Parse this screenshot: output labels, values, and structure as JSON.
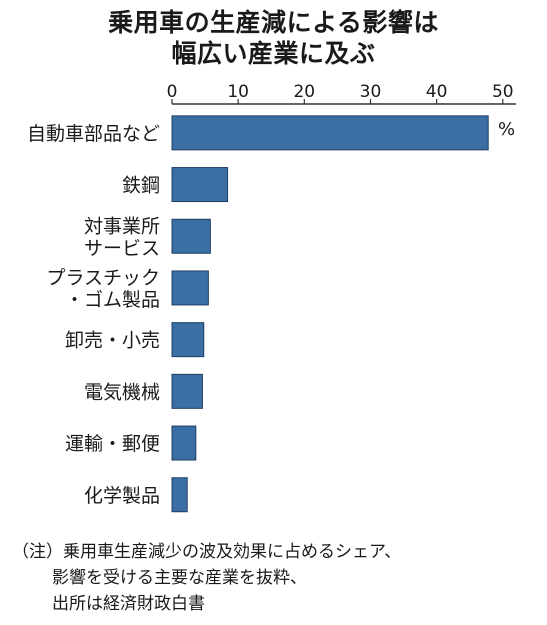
{
  "title_lines": [
    "乗用車の生産減による影響は",
    "幅広い産業に及ぶ"
  ],
  "notes": [
    "（注）乗用車生産減少の波及効果に占めるシェア、",
    "影響を受ける主要な産業を抜粋、",
    "出所は経済財政白書"
  ],
  "chart_data": {
    "type": "bar",
    "orientation": "horizontal",
    "title": "乗用車の生産減による影響は幅広い産業に及ぶ",
    "unit": "%",
    "categories": [
      [
        "自動車部品など"
      ],
      [
        "鉄鋼"
      ],
      [
        "対事業所",
        "サービス"
      ],
      [
        "プラスチック",
        "・ゴム製品"
      ],
      [
        "卸売・小売"
      ],
      [
        "電気機械"
      ],
      [
        "運輸・郵便"
      ],
      [
        "化学製品"
      ]
    ],
    "values": [
      47.8,
      8.4,
      5.8,
      5.5,
      4.8,
      4.6,
      3.6,
      2.3
    ],
    "xlim": [
      0,
      52
    ],
    "xticks": [
      0,
      10,
      20,
      30,
      40,
      50
    ],
    "axis_position": "top",
    "grid": false,
    "bar_color": "#3a6ea5",
    "bar_edge_color": "#1f3f63"
  }
}
